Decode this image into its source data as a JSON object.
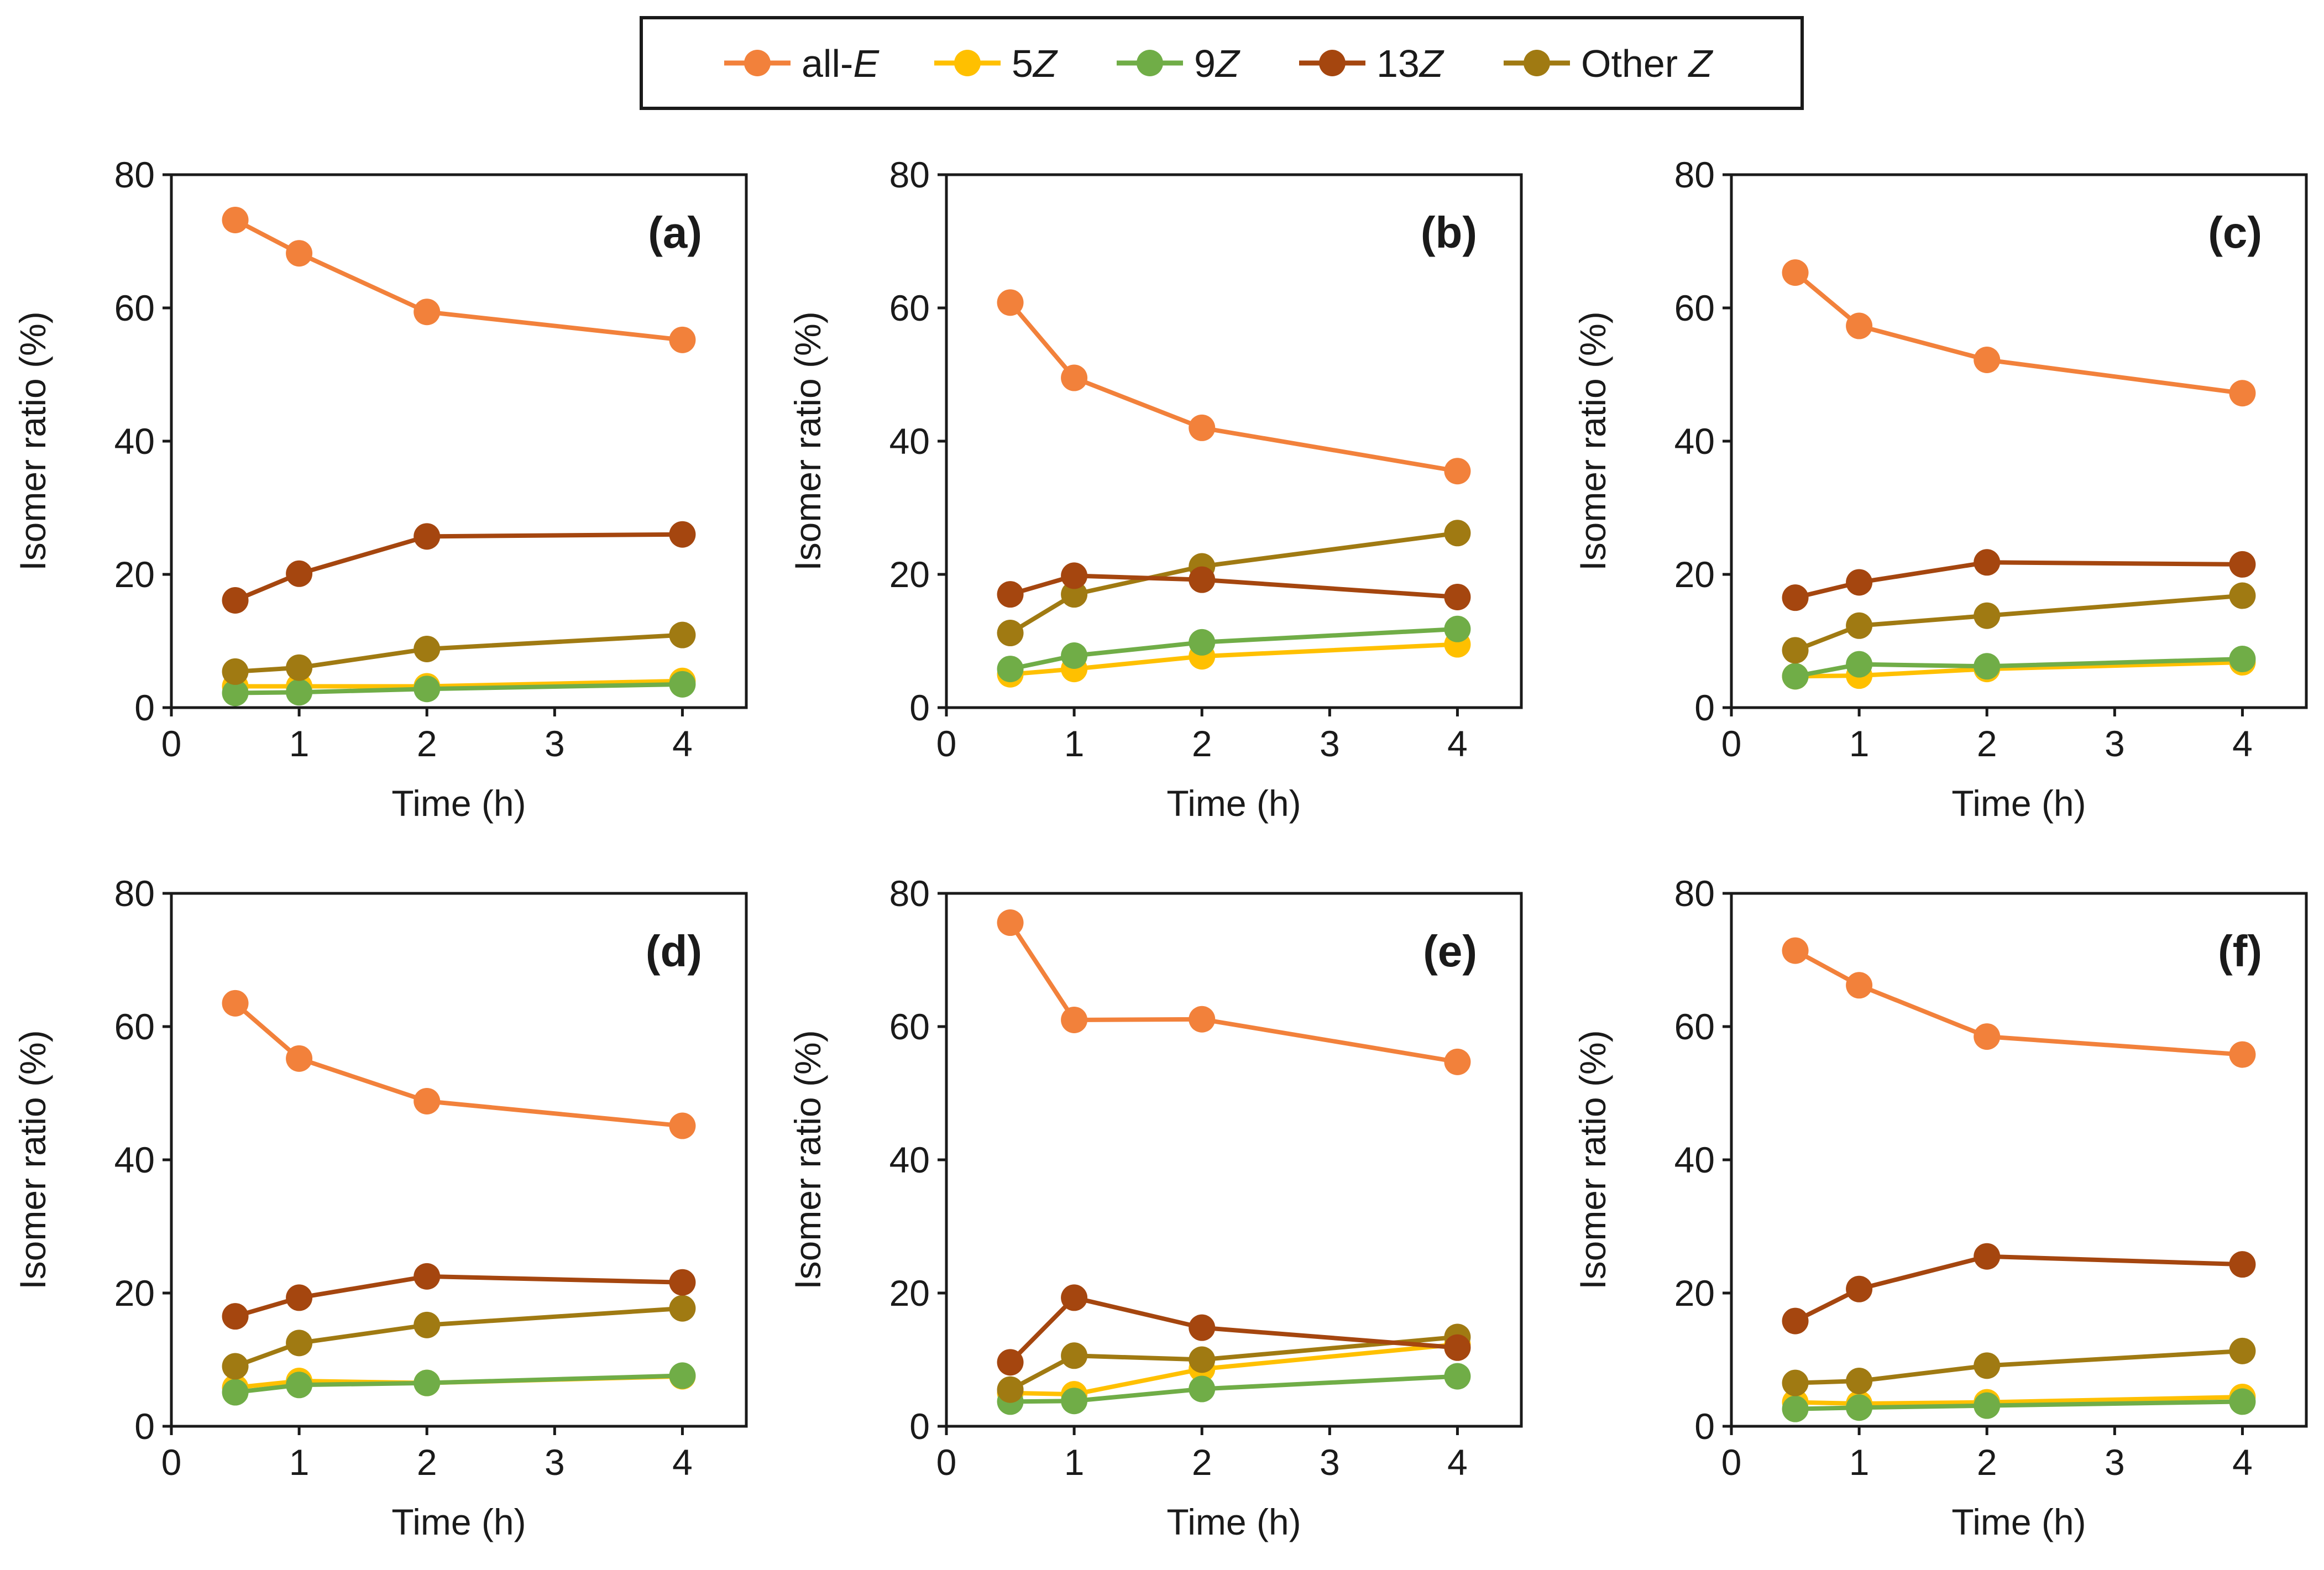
{
  "chart_data": {
    "type": "line",
    "legend": {
      "placement": "top-center",
      "items": [
        {
          "key": "allE",
          "label_pre": "all-",
          "label_italic": "E",
          "color": "#F2813B"
        },
        {
          "key": "z5",
          "label_pre": "5",
          "label_italic": "Z",
          "color": "#FFC000"
        },
        {
          "key": "z9",
          "label_pre": "9",
          "label_italic": "Z",
          "color": "#70AD47"
        },
        {
          "key": "z13",
          "label_pre": "13",
          "label_italic": "Z",
          "color": "#A5460F"
        },
        {
          "key": "otherZ",
          "label_pre": "Other ",
          "label_italic": "Z",
          "color": "#A07A12"
        }
      ]
    },
    "series_order": [
      "z5",
      "z9",
      "otherZ",
      "z13",
      "allE"
    ],
    "x_label": "Time (h)",
    "y_label": "Isomer ratio (%)",
    "xlim": [
      0,
      4.5
    ],
    "ylim": [
      0,
      80
    ],
    "x_ticks": [
      "0",
      "1",
      "2",
      "3",
      "4"
    ],
    "y_ticks": [
      "0",
      "20",
      "40",
      "60",
      "80"
    ],
    "x": [
      0.5,
      1,
      2,
      4
    ],
    "panels": [
      {
        "label": "(a)",
        "series": {
          "allE": [
            73.2,
            68.2,
            59.4,
            55.2
          ],
          "z5": [
            3.2,
            3.2,
            3.2,
            4.0
          ],
          "z9": [
            2.2,
            2.3,
            2.8,
            3.5
          ],
          "z13": [
            16.1,
            20.1,
            25.7,
            26.0
          ],
          "otherZ": [
            5.4,
            6.0,
            8.8,
            10.9
          ]
        }
      },
      {
        "label": "(b)",
        "series": {
          "allE": [
            60.8,
            49.5,
            42.0,
            35.5
          ],
          "z5": [
            5.0,
            5.8,
            7.7,
            9.5
          ],
          "z9": [
            5.8,
            7.8,
            9.8,
            11.8
          ],
          "z13": [
            17.0,
            19.8,
            19.2,
            16.6
          ],
          "otherZ": [
            11.2,
            17.0,
            21.2,
            26.2
          ]
        }
      },
      {
        "label": "(c)",
        "series": {
          "allE": [
            65.3,
            57.3,
            52.2,
            47.2
          ],
          "z5": [
            4.7,
            4.8,
            5.8,
            6.8
          ],
          "z9": [
            4.7,
            6.5,
            6.2,
            7.3
          ],
          "z13": [
            16.5,
            18.8,
            21.8,
            21.5
          ],
          "otherZ": [
            8.6,
            12.3,
            13.8,
            16.8
          ]
        }
      },
      {
        "label": "(d)",
        "series": {
          "allE": [
            63.5,
            55.2,
            48.8,
            45.1
          ],
          "z5": [
            5.8,
            6.8,
            6.5,
            7.5
          ],
          "z9": [
            5.1,
            6.2,
            6.5,
            7.6
          ],
          "z13": [
            16.5,
            19.3,
            22.5,
            21.6
          ],
          "otherZ": [
            9.0,
            12.5,
            15.2,
            17.7
          ]
        }
      },
      {
        "label": "(e)",
        "series": {
          "allE": [
            75.6,
            61.0,
            61.1,
            54.7
          ],
          "z5": [
            5.0,
            4.8,
            8.6,
            12.3
          ],
          "z9": [
            3.7,
            3.8,
            5.6,
            7.5
          ],
          "z13": [
            9.6,
            19.3,
            14.8,
            11.8
          ],
          "otherZ": [
            5.5,
            10.6,
            10.0,
            13.4
          ]
        }
      },
      {
        "label": "(f)",
        "series": {
          "allE": [
            71.4,
            66.2,
            58.5,
            55.8
          ],
          "z5": [
            3.6,
            3.4,
            3.6,
            4.4
          ],
          "z9": [
            2.6,
            2.8,
            3.1,
            3.7
          ],
          "z13": [
            15.8,
            20.6,
            25.5,
            24.3
          ],
          "otherZ": [
            6.5,
            6.8,
            9.1,
            11.3
          ]
        }
      }
    ]
  }
}
